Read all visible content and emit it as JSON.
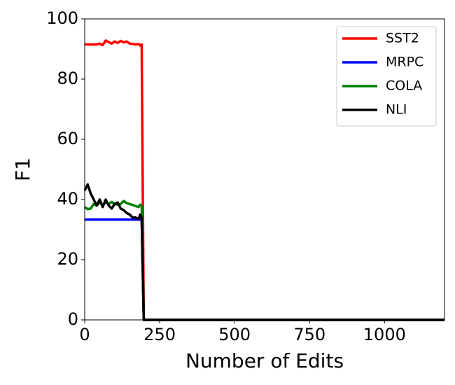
{
  "chart_data": {
    "type": "line",
    "xlabel": "Number of Edits",
    "ylabel": "F1",
    "x": [
      0,
      10,
      20,
      30,
      40,
      50,
      60,
      70,
      80,
      90,
      100,
      110,
      120,
      130,
      140,
      150,
      160,
      170,
      180,
      185,
      190,
      197,
      200,
      1200
    ],
    "series": [
      {
        "name": "SST2",
        "color": "#ff0000",
        "values": [
          91.5,
          91.5,
          91.5,
          91.5,
          91.5,
          91.8,
          91.3,
          92.8,
          92.3,
          91.8,
          92.5,
          92.0,
          92.7,
          92.2,
          92.5,
          91.8,
          91.7,
          91.5,
          91.6,
          91.2,
          91.5,
          0,
          0,
          0
        ]
      },
      {
        "name": "MRPC",
        "color": "#0000ff",
        "values": [
          33.3,
          33.3,
          33.3,
          33.3,
          33.3,
          33.3,
          33.3,
          33.3,
          33.3,
          33.3,
          33.3,
          33.3,
          33.3,
          33.3,
          33.3,
          33.3,
          33.3,
          33.3,
          33.3,
          33.3,
          33.3,
          0,
          0,
          0
        ]
      },
      {
        "name": "COLA",
        "color": "#008000",
        "values": [
          37.5,
          36.8,
          37.0,
          38.5,
          38.0,
          39.0,
          38.2,
          39.0,
          38.5,
          39.2,
          38.5,
          38.3,
          38.5,
          39.5,
          38.8,
          38.5,
          38.2,
          37.8,
          37.5,
          38.3,
          37.8,
          0,
          0,
          0
        ]
      },
      {
        "name": "NLI",
        "color": "#000000",
        "values": [
          43,
          45,
          42,
          40,
          38,
          40,
          37.5,
          40,
          38,
          37,
          38.5,
          39,
          37,
          36.5,
          35.5,
          35,
          34,
          34,
          33.5,
          35,
          34,
          0,
          0,
          0
        ]
      }
    ],
    "xlim": [
      0,
      1200
    ],
    "xticks": [
      0,
      250,
      500,
      750,
      1000
    ],
    "ylim": [
      0,
      100
    ],
    "yticks": [
      0,
      20,
      40,
      60,
      80,
      100
    ],
    "legend": "upper right"
  }
}
